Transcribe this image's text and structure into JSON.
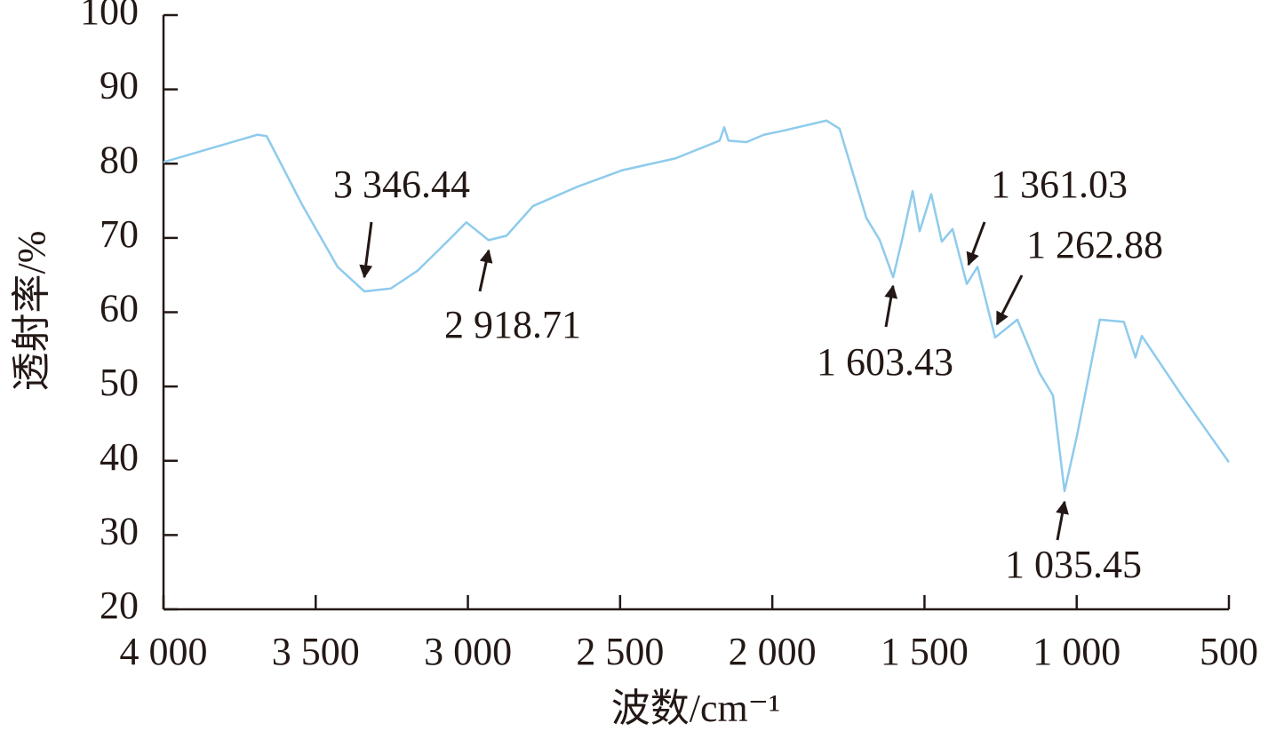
{
  "chart_data": {
    "type": "line",
    "x_label": "波数/cm⁻¹",
    "y_label": "透射率/%",
    "xlim": [
      4000,
      500
    ],
    "ylim": [
      20,
      100
    ],
    "xticks": [
      {
        "value": 4000,
        "label": "4 000"
      },
      {
        "value": 3500,
        "label": "3 500"
      },
      {
        "value": 3000,
        "label": "3 000"
      },
      {
        "value": 2500,
        "label": "2 500"
      },
      {
        "value": 2000,
        "label": "2 000"
      },
      {
        "value": 1500,
        "label": "1 500"
      },
      {
        "value": 1000,
        "label": "1 000"
      },
      500
    ],
    "yticks": [
      20,
      30,
      40,
      50,
      60,
      70,
      80,
      90,
      100
    ],
    "series": [
      {
        "color": "#8ecbec",
        "x": [
          4000,
          3691,
          3661,
          3545,
          3428,
          3340,
          3253,
          3165,
          3078,
          3005,
          2932,
          2873,
          2786,
          2640,
          2494,
          2319,
          2173,
          2158,
          2144,
          2085,
          2027,
          1968,
          1822,
          1779,
          1735,
          1691,
          1647,
          1603,
          1574,
          1539,
          1516,
          1478,
          1443,
          1408,
          1361,
          1326,
          1268,
          1195,
          1122,
          1078,
          1040,
          999,
          924,
          845,
          807,
          786,
          655,
          500
        ],
        "values": [
          80.2,
          83.9,
          83.7,
          74.5,
          66.1,
          62.8,
          63.2,
          65.6,
          69.1,
          72.1,
          69.7,
          70.3,
          74.3,
          76.9,
          79.1,
          80.7,
          83.1,
          84.9,
          83.1,
          82.9,
          83.9,
          84.4,
          85.8,
          84.7,
          78.7,
          72.7,
          69.7,
          64.7,
          69.7,
          76.3,
          70.9,
          75.9,
          69.5,
          71.2,
          63.8,
          66.1,
          56.6,
          59.0,
          51.8,
          48.8,
          35.9,
          43.4,
          59.0,
          58.7,
          53.9,
          56.8,
          48.8,
          39.8
        ]
      }
    ],
    "annotations": [
      "3 346.44",
      "2 918.71",
      "1 603.43",
      "1 361.03",
      "1 262.88",
      "1 035.45"
    ]
  }
}
